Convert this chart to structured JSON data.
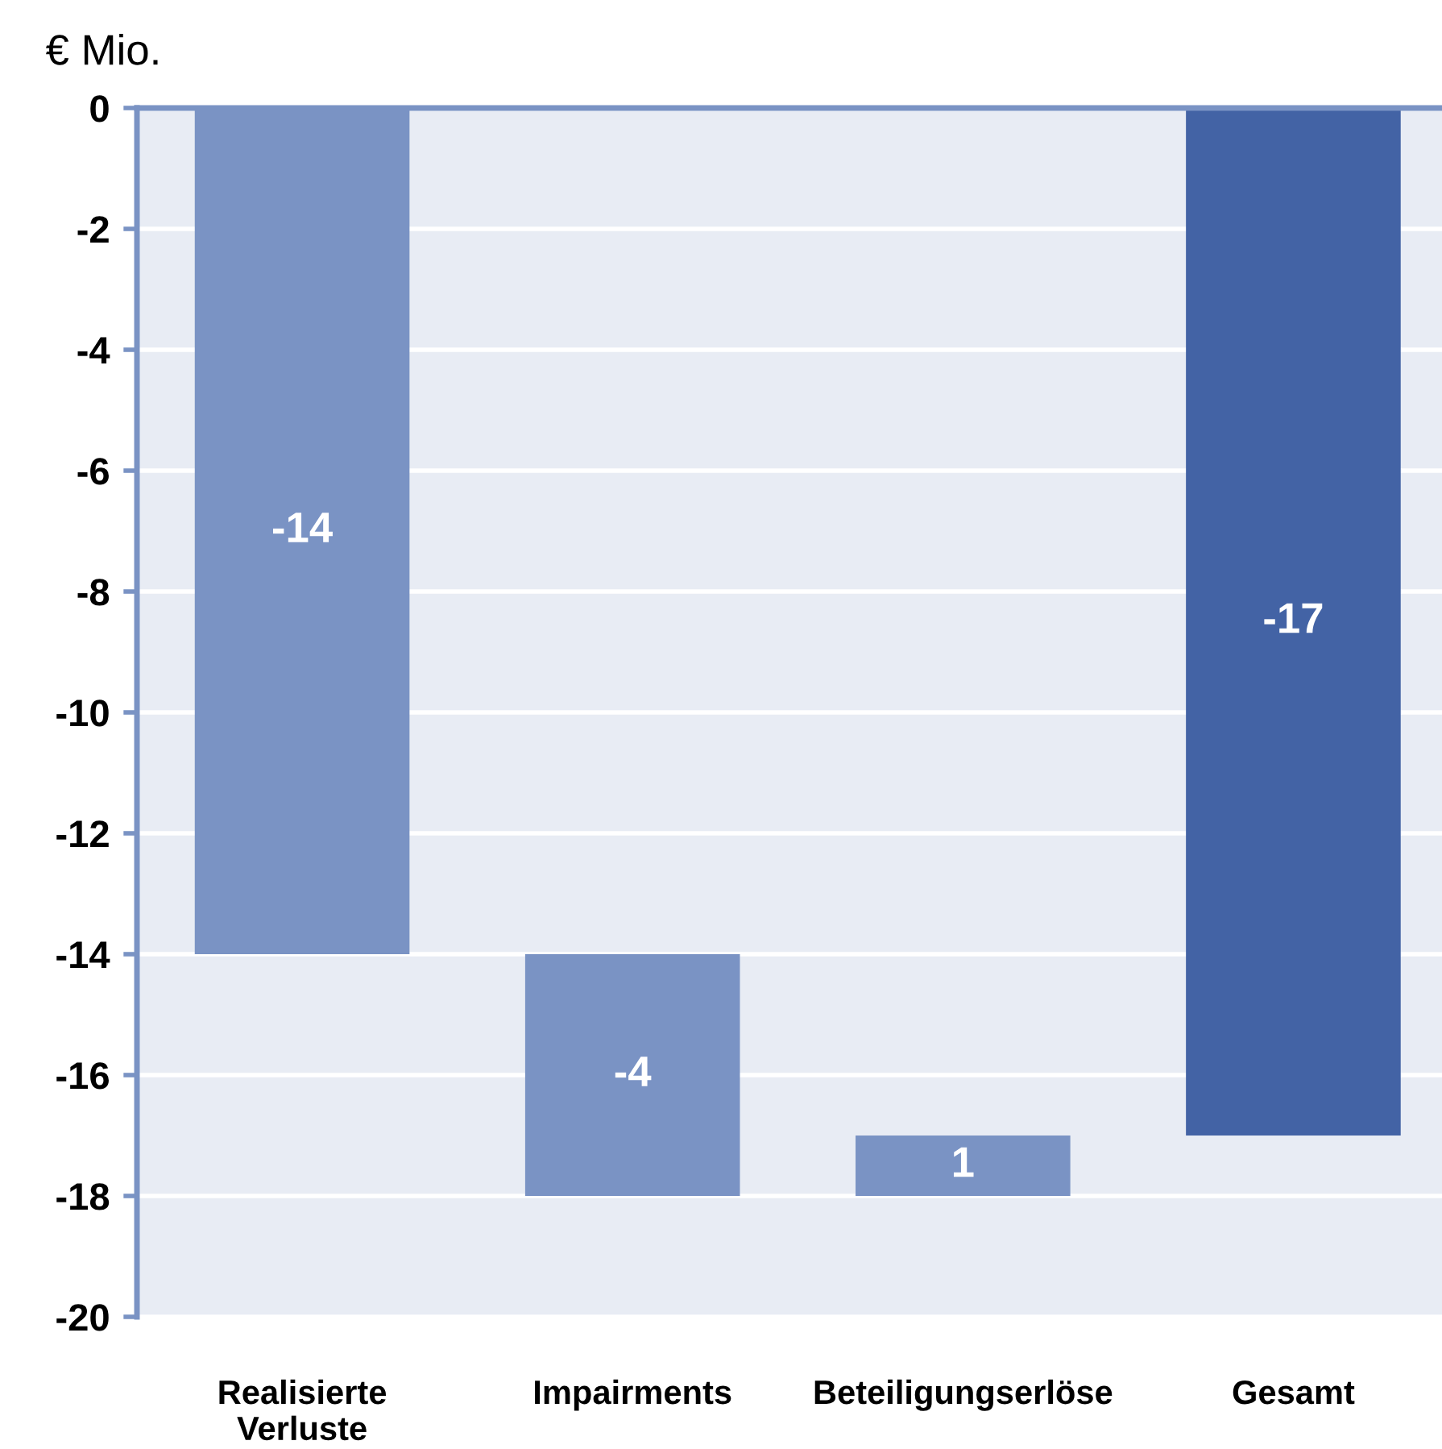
{
  "chart_data": {
    "type": "bar",
    "ylabel": "€ Mio.",
    "categories": [
      "Realisierte\nVerluste",
      "Impairments",
      "Beteiligungserlöse",
      "Gesamt"
    ],
    "values": [
      -14,
      -4,
      1,
      -17
    ],
    "base": [
      0,
      -14,
      -18,
      0
    ],
    "colors": [
      "#7a93c4",
      "#7a93c4",
      "#7a93c4",
      "#4363a5"
    ],
    "data_labels": true,
    "ylim": [
      -20,
      0
    ],
    "yticks": [
      -20,
      -18,
      -16,
      -14,
      -12,
      -10,
      -8,
      -6,
      -4,
      -2,
      0
    ],
    "grid": "y",
    "legend": false
  }
}
